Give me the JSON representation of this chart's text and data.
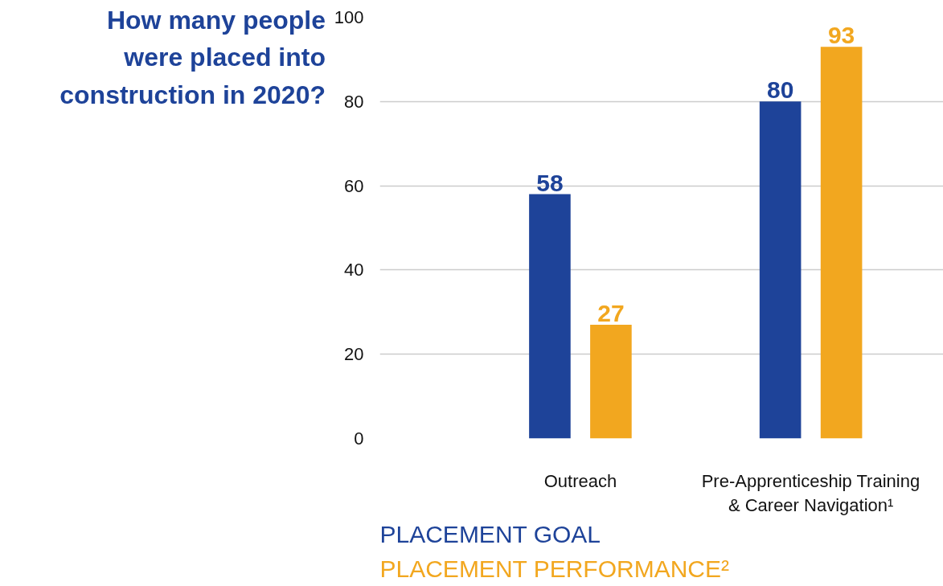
{
  "chart_data": {
    "type": "bar",
    "title": "How many people\nwere placed into\nconstruction in 2020?",
    "categories": [
      "Outreach",
      "Pre-Apprenticeship Training\n& Career Navigation¹"
    ],
    "series": [
      {
        "name": "PLACEMENT GOAL",
        "color": "#1e4399",
        "values": [
          58,
          80
        ]
      },
      {
        "name": "PLACEMENT PERFORMANCE²",
        "color": "#f2a71f",
        "values": [
          27,
          93
        ]
      }
    ],
    "ylim": [
      0,
      100
    ],
    "yticks": [
      0,
      20,
      40,
      60,
      80,
      100
    ],
    "grid": "y",
    "data_labels": true
  }
}
